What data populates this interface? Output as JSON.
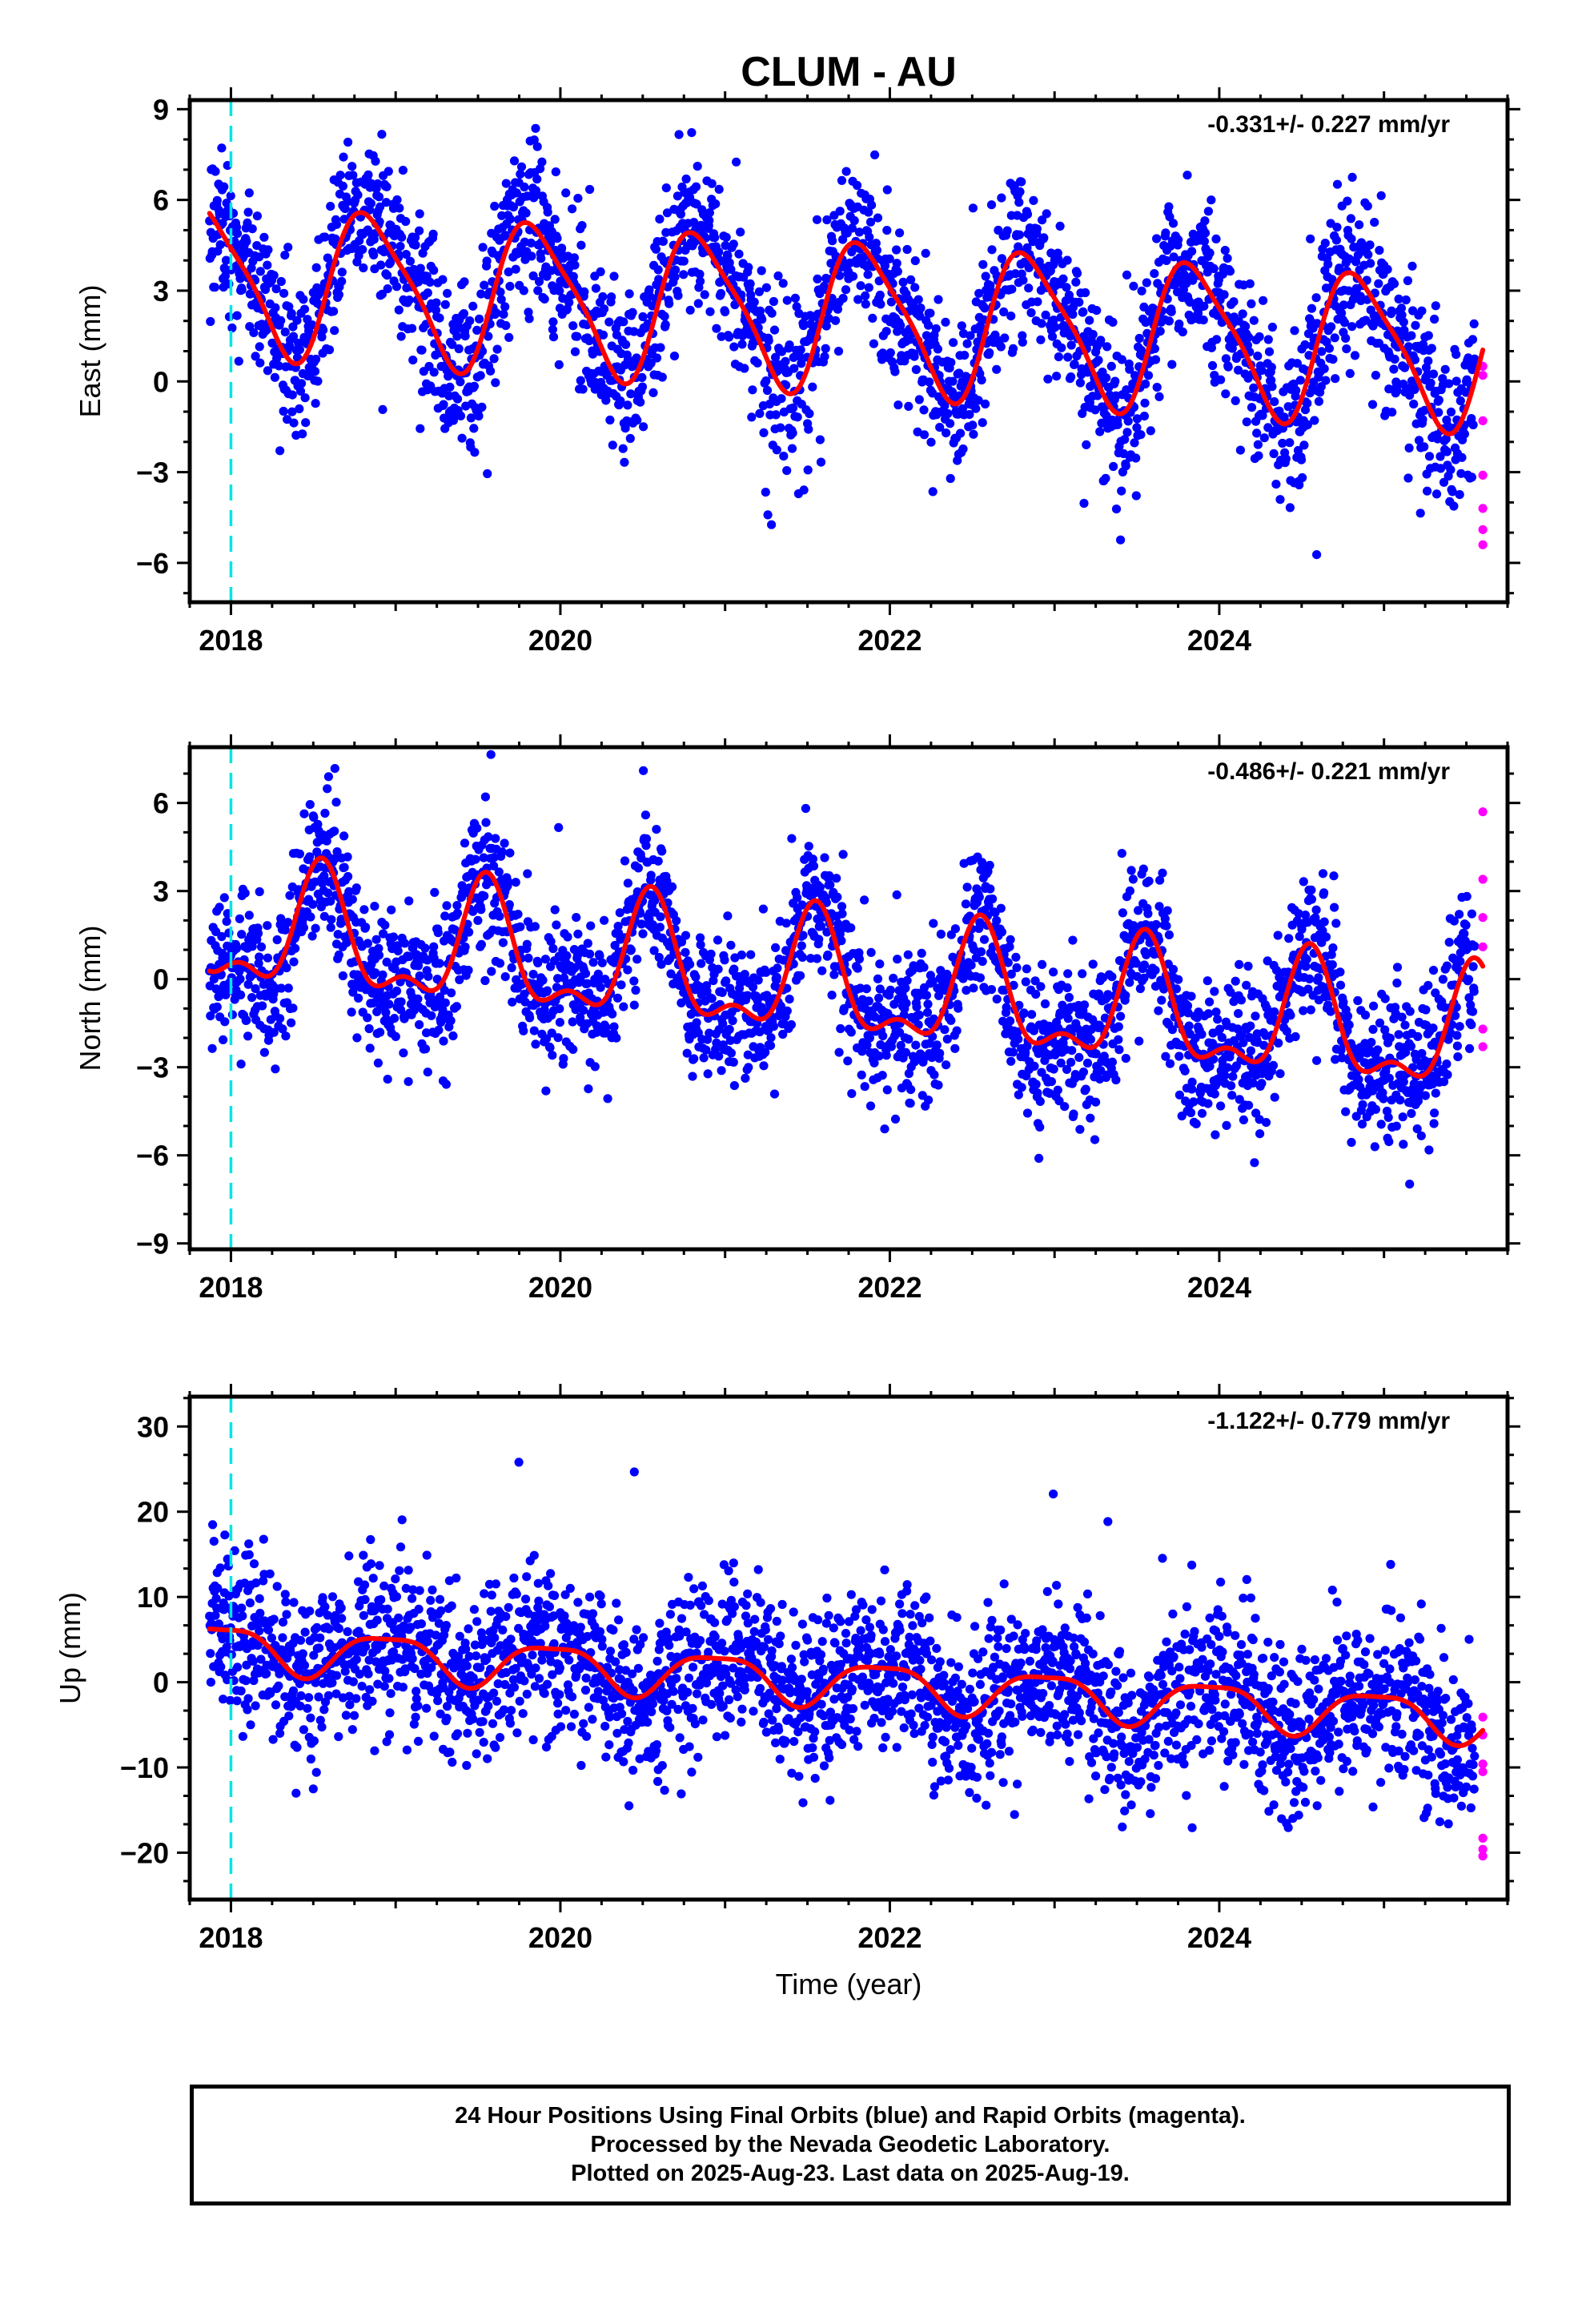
{
  "chart_data": [
    {
      "type": "scatter",
      "title": "CLUM - AU",
      "ylabel": "East (mm)",
      "xlabel": "",
      "xlim": [
        2017.75,
        2025.75
      ],
      "ylim": [
        -7.3,
        9.3
      ],
      "xticks": [
        2018,
        2020,
        2022,
        2024
      ],
      "yticks": [
        -6,
        -3,
        0,
        3,
        6,
        9
      ],
      "rate_text": "-0.331+/- 0.227 mm/yr",
      "marker_line_x": 2018.0,
      "grid": false,
      "trend": {
        "intercept": 3.4,
        "rate": -0.331,
        "amp_annual": 2.4,
        "phase_annual": 2018.85,
        "amp_semi": 0.5,
        "phase_semi": 2018.2
      },
      "scatter_sd": 1.35,
      "rapid_points": [
        [
          2025.6,
          0.5
        ],
        [
          2025.6,
          0.2
        ],
        [
          2025.6,
          -1.3
        ],
        [
          2025.6,
          -3.1
        ],
        [
          2025.6,
          -4.2
        ],
        [
          2025.6,
          -4.9
        ],
        [
          2025.6,
          -5.4
        ]
      ],
      "series": [
        {
          "name": "Final Orbits",
          "color": "#0000ff"
        },
        {
          "name": "Rapid Orbits",
          "color": "#ff00ff"
        },
        {
          "name": "",
          "color": "#ff0000"
        }
      ]
    },
    {
      "type": "scatter",
      "title": "",
      "ylabel": "North (mm)",
      "xlabel": "",
      "xlim": [
        2017.75,
        2025.75
      ],
      "ylim": [
        -9.2,
        7.9
      ],
      "xticks": [
        2018,
        2020,
        2022,
        2024
      ],
      "yticks": [
        -9,
        -6,
        -3,
        0,
        3,
        6
      ],
      "rate_text": "-0.486+/- 0.221 mm/yr",
      "marker_line_x": 2018.0,
      "grid": false,
      "trend": {
        "intercept": 1.6,
        "rate": -0.486,
        "amp_annual": 1.9,
        "phase_annual": 2018.55,
        "amp_semi": 0.9,
        "phase_semi": 2018.55
      },
      "scatter_sd": 1.25,
      "rapid_points": [
        [
          2025.6,
          5.7
        ],
        [
          2025.6,
          3.4
        ],
        [
          2025.6,
          2.1
        ],
        [
          2025.6,
          1.1
        ],
        [
          2025.6,
          -1.7
        ],
        [
          2025.6,
          -2.3
        ]
      ],
      "series": [
        {
          "name": "Final Orbits",
          "color": "#0000ff"
        },
        {
          "name": "Rapid Orbits",
          "color": "#ff00ff"
        },
        {
          "name": "",
          "color": "#ff0000"
        }
      ]
    },
    {
      "type": "scatter",
      "title": "",
      "ylabel": "Up (mm)",
      "xlabel": "Time (year)",
      "xlim": [
        2017.75,
        2025.75
      ],
      "ylim": [
        -25.5,
        33.5
      ],
      "xticks": [
        2018,
        2020,
        2022,
        2024
      ],
      "yticks": [
        -20,
        -10,
        0,
        10,
        20,
        30
      ],
      "rate_text": "-1.122+/- 0.779 mm/yr",
      "marker_line_x": 2018.0,
      "grid": false,
      "trend": {
        "intercept": 4.2,
        "rate": -1.122,
        "amp_annual": 2.6,
        "phase_annual": 2018.95,
        "amp_semi": 0.7,
        "phase_semi": 2018.2
      },
      "scatter_sd": 4.8,
      "rapid_points": [
        [
          2025.6,
          -4.1
        ],
        [
          2025.6,
          -6.2
        ],
        [
          2025.6,
          -9.6
        ],
        [
          2025.6,
          -10.5
        ],
        [
          2025.6,
          -18.3
        ],
        [
          2025.6,
          -19.6
        ],
        [
          2025.6,
          -20.4
        ]
      ],
      "series": [
        {
          "name": "Final Orbits",
          "color": "#0000ff"
        },
        {
          "name": "Rapid Orbits",
          "color": "#ff00ff"
        },
        {
          "name": "",
          "color": "#ff0000"
        }
      ]
    }
  ],
  "colors": {
    "final_orbits": "#0000ff",
    "rapid_orbits": "#ff00ff",
    "fit_curve": "#ff0000",
    "marker_line": "#00e5e5"
  },
  "footer": {
    "line1": "24 Hour Positions Using Final Orbits (blue) and Rapid Orbits (magenta).",
    "line2": "Processed by the Nevada Geodetic Laboratory.",
    "line3": "Plotted on 2025-Aug-23. Last data on 2025-Aug-19."
  }
}
